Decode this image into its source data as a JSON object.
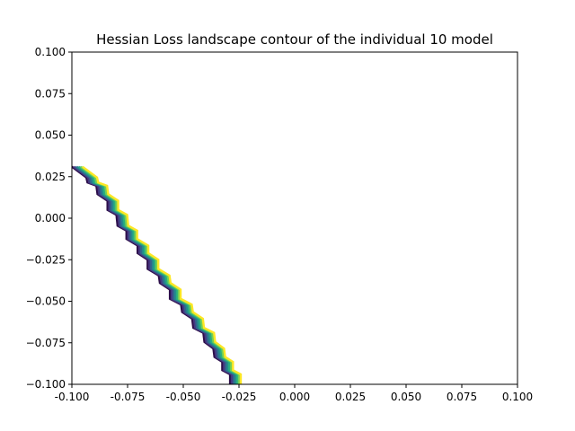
{
  "chart_data": {
    "type": "contour",
    "title": "Hessian Loss landscape contour of the individual 10 model",
    "xlabel": "",
    "ylabel": "",
    "xlim": [
      -0.1,
      0.1
    ],
    "ylim": [
      -0.1,
      0.1
    ],
    "x_ticks": [
      "-0.100",
      "-0.075",
      "-0.050",
      "-0.025",
      "0.000",
      "0.025",
      "0.050",
      "0.075",
      "0.100"
    ],
    "y_ticks": [
      "0.100",
      "0.075",
      "0.050",
      "0.025",
      "0.000",
      "−0.025",
      "−0.050",
      "−0.075",
      "−0.100"
    ],
    "grid": false,
    "colormap": "viridis",
    "levels": [
      {
        "offset": 0.0,
        "color": "#2d0f4a"
      },
      {
        "offset": 0.0008,
        "color": "#453781"
      },
      {
        "offset": 0.0016,
        "color": "#33638d"
      },
      {
        "offset": 0.0024,
        "color": "#238a8d"
      },
      {
        "offset": 0.0032,
        "color": "#29af7f"
      },
      {
        "offset": 0.004,
        "color": "#73d055"
      },
      {
        "offset": 0.0048,
        "color": "#fde725"
      }
    ],
    "base_line": [
      [
        -0.1,
        0.031
      ],
      [
        -0.0935,
        0.0245
      ],
      [
        -0.093,
        0.0215
      ],
      [
        -0.089,
        0.0195
      ],
      [
        -0.0885,
        0.0145
      ],
      [
        -0.084,
        0.0105
      ],
      [
        -0.084,
        0.005
      ],
      [
        -0.08,
        0.002
      ],
      [
        -0.0795,
        -0.0045
      ],
      [
        -0.0755,
        -0.0075
      ],
      [
        -0.0755,
        -0.0125
      ],
      [
        -0.0705,
        -0.0165
      ],
      [
        -0.0705,
        -0.021
      ],
      [
        -0.066,
        -0.025
      ],
      [
        -0.066,
        -0.0305
      ],
      [
        -0.061,
        -0.0345
      ],
      [
        -0.0605,
        -0.039
      ],
      [
        -0.056,
        -0.043
      ],
      [
        -0.056,
        -0.0485
      ],
      [
        -0.051,
        -0.052
      ],
      [
        -0.0505,
        -0.0565
      ],
      [
        -0.046,
        -0.0605
      ],
      [
        -0.0455,
        -0.066
      ],
      [
        -0.041,
        -0.069
      ],
      [
        -0.0405,
        -0.0745
      ],
      [
        -0.0365,
        -0.0785
      ],
      [
        -0.036,
        -0.0835
      ],
      [
        -0.0325,
        -0.0865
      ],
      [
        -0.0325,
        -0.0915
      ],
      [
        -0.029,
        -0.094
      ],
      [
        -0.029,
        -0.1
      ]
    ]
  }
}
